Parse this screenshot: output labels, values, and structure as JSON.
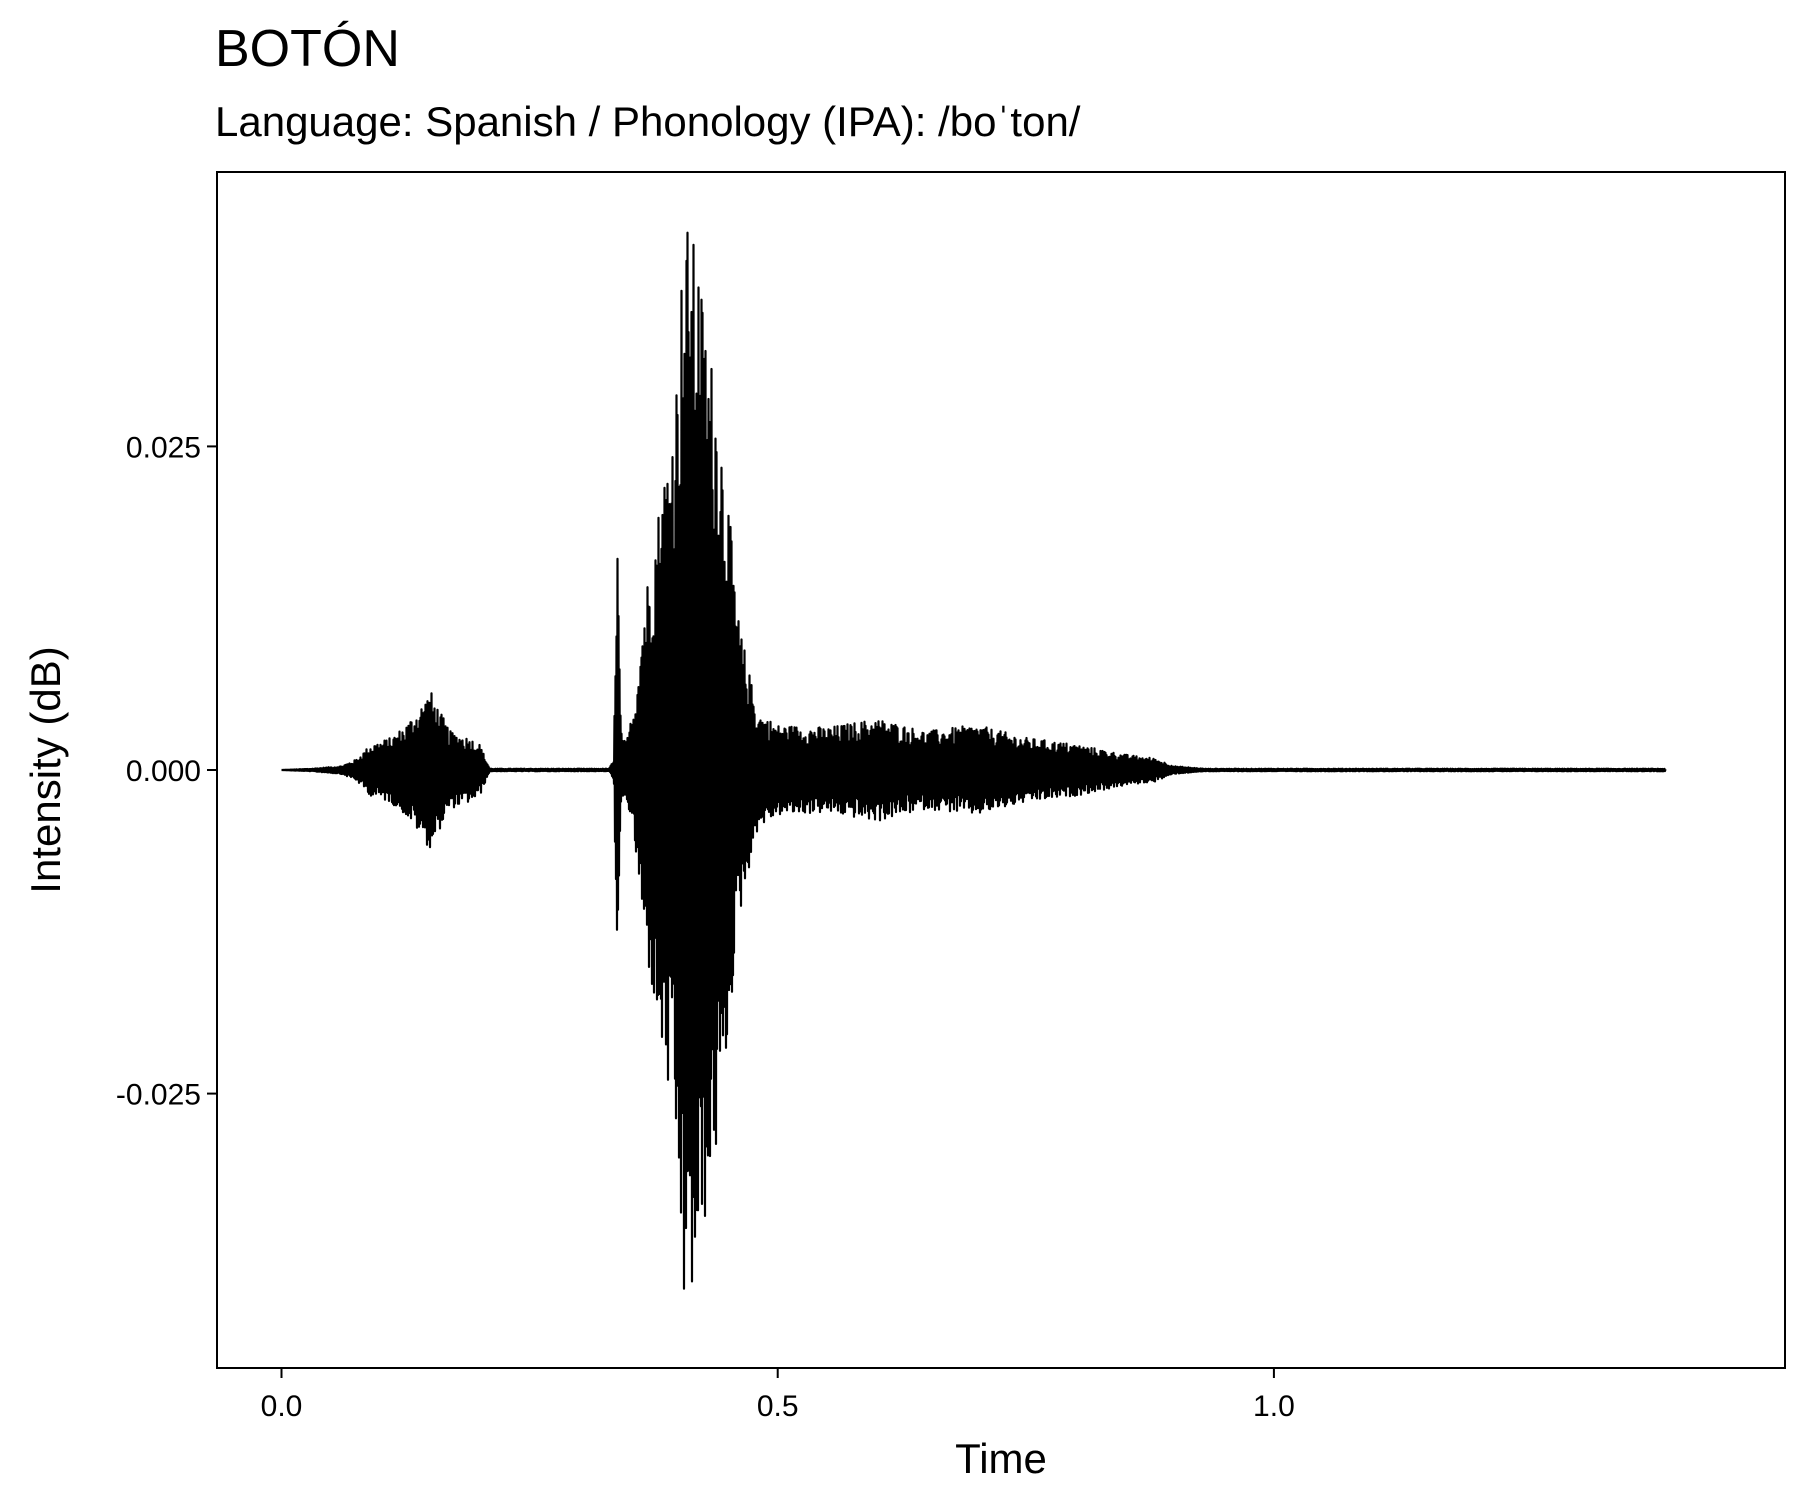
{
  "chart_data": {
    "type": "line",
    "title": "BOTÓN",
    "subtitle": "Language: Spanish / Phonology (IPA): /boˈton/",
    "xlabel": "Time",
    "ylabel": "Intensity (dB)",
    "xlim": [
      -0.065,
      1.515
    ],
    "ylim": [
      -0.0462,
      0.0462
    ],
    "x_ticks": [
      {
        "value": 0.0,
        "label": "0.0"
      },
      {
        "value": 0.5,
        "label": "0.5"
      },
      {
        "value": 1.0,
        "label": "1.0"
      }
    ],
    "y_ticks": [
      {
        "value": 0.025,
        "label": "0.025"
      },
      {
        "value": 0.0,
        "label": "0.000"
      },
      {
        "value": -0.025,
        "label": "-0.025"
      }
    ],
    "grid": false,
    "line_color": "#000000",
    "series": [
      {
        "x_start": 0.0,
        "x_end": 1.395,
        "envelope_x": [
          0.0,
          0.03,
          0.06,
          0.075,
          0.09,
          0.11,
          0.125,
          0.14,
          0.15,
          0.16,
          0.17,
          0.19,
          0.2,
          0.205,
          0.21,
          0.33,
          0.335,
          0.338,
          0.342,
          0.347,
          0.355,
          0.365,
          0.375,
          0.385,
          0.395,
          0.4,
          0.405,
          0.41,
          0.415,
          0.42,
          0.425,
          0.43,
          0.44,
          0.45,
          0.46,
          0.47,
          0.48,
          0.5,
          0.55,
          0.6,
          0.65,
          0.7,
          0.75,
          0.8,
          0.85,
          0.88,
          0.9,
          0.93,
          1.0,
          1.395
        ],
        "envelope_y": [
          0.0,
          0.0001,
          0.0003,
          0.0008,
          0.002,
          0.0025,
          0.0035,
          0.005,
          0.0062,
          0.0045,
          0.003,
          0.0025,
          0.002,
          0.001,
          0.0001,
          0.0001,
          0.0008,
          0.0205,
          0.003,
          0.002,
          0.005,
          0.013,
          0.018,
          0.023,
          0.028,
          0.033,
          0.042,
          0.0425,
          0.041,
          0.04,
          0.036,
          0.0335,
          0.029,
          0.021,
          0.012,
          0.008,
          0.0045,
          0.0035,
          0.0033,
          0.004,
          0.003,
          0.0035,
          0.0025,
          0.002,
          0.0012,
          0.0009,
          0.0003,
          0.0001,
          0.0001,
          0.0001
        ]
      }
    ]
  }
}
